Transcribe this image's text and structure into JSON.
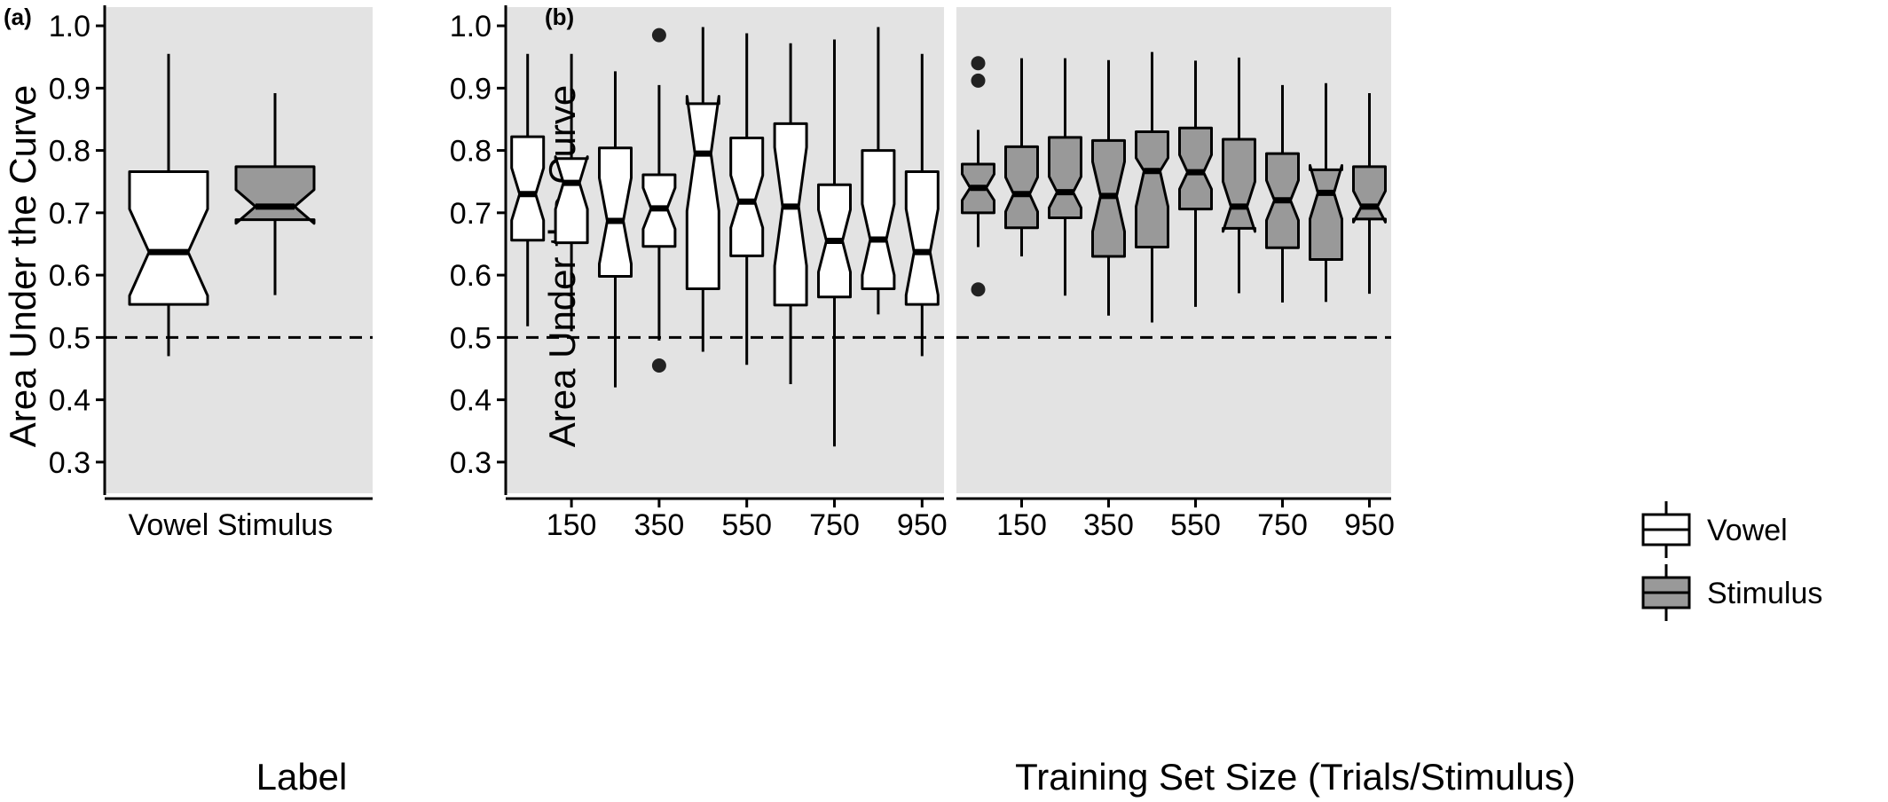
{
  "colors": {
    "panel_bg": "#e3e3e3",
    "vowel_fill": "#ffffff",
    "stimulus_fill": "#999999",
    "stroke": "#000000",
    "reference_line": "#000000"
  },
  "chart_data": [
    {
      "panel": "(a)",
      "type": "boxplot",
      "notched": true,
      "xlabel": "Label",
      "ylabel": "Area Under the Curve",
      "ylim": [
        0.25,
        1.03
      ],
      "yticks": [
        "0.3",
        "0.4",
        "0.5",
        "0.6",
        "0.7",
        "0.8",
        "0.9",
        "1.0"
      ],
      "reference_line": 0.5,
      "grid": false,
      "categories": [
        "Vowel",
        "Stimulus"
      ],
      "boxes": [
        {
          "category": "Vowel",
          "group": "Vowel",
          "whisker_low": 0.47,
          "q1": 0.553,
          "median": 0.637,
          "q3": 0.766,
          "whisker_high": 0.955,
          "notch_low": 0.567,
          "notch_high": 0.706,
          "outliers": []
        },
        {
          "category": "Stimulus",
          "group": "Stimulus",
          "whisker_low": 0.568,
          "q1": 0.689,
          "median": 0.71,
          "q3": 0.774,
          "whisker_high": 0.892,
          "notch_low": 0.683,
          "notch_high": 0.737,
          "outliers": []
        }
      ]
    },
    {
      "panel": "(b)",
      "type": "boxplot",
      "notched": true,
      "facet": "Vowel",
      "ylabel": "Area Under the Curve",
      "xlabel": "Training Set Size (Trials/Stimulus)",
      "ylim": [
        0.25,
        1.03
      ],
      "yticks": [
        "0.3",
        "0.4",
        "0.5",
        "0.6",
        "0.7",
        "0.8",
        "0.9",
        "1.0"
      ],
      "xticks": [
        "150",
        "350",
        "550",
        "750",
        "950"
      ],
      "reference_line": 0.5,
      "grid": false,
      "x": [
        50,
        150,
        250,
        350,
        450,
        550,
        650,
        750,
        850,
        950
      ],
      "boxes": [
        {
          "x": 50,
          "group": "Vowel",
          "whisker_low": 0.518,
          "q1": 0.656,
          "median": 0.73,
          "q3": 0.822,
          "whisker_high": 0.955,
          "notch_low": 0.688,
          "notch_high": 0.772,
          "outliers": []
        },
        {
          "x": 150,
          "group": "Vowel",
          "whisker_low": 0.51,
          "q1": 0.652,
          "median": 0.748,
          "q3": 0.787,
          "whisker_high": 0.955,
          "notch_low": 0.706,
          "notch_high": 0.79,
          "outliers": []
        },
        {
          "x": 250,
          "group": "Vowel",
          "whisker_low": 0.42,
          "q1": 0.598,
          "median": 0.687,
          "q3": 0.804,
          "whisker_high": 0.927,
          "notch_low": 0.618,
          "notch_high": 0.756,
          "outliers": []
        },
        {
          "x": 350,
          "group": "Vowel",
          "whisker_low": 0.495,
          "q1": 0.646,
          "median": 0.707,
          "q3": 0.761,
          "whisker_high": 0.905,
          "notch_low": 0.674,
          "notch_high": 0.74,
          "outliers": [
            0.985,
            0.455
          ]
        },
        {
          "x": 450,
          "group": "Vowel",
          "whisker_low": 0.477,
          "q1": 0.578,
          "median": 0.795,
          "q3": 0.875,
          "whisker_high": 0.998,
          "notch_low": 0.703,
          "notch_high": 0.887,
          "outliers": []
        },
        {
          "x": 550,
          "group": "Vowel",
          "whisker_low": 0.456,
          "q1": 0.631,
          "median": 0.718,
          "q3": 0.82,
          "whisker_high": 0.988,
          "notch_low": 0.676,
          "notch_high": 0.76,
          "outliers": []
        },
        {
          "x": 650,
          "group": "Vowel",
          "whisker_low": 0.425,
          "q1": 0.552,
          "median": 0.71,
          "q3": 0.843,
          "whisker_high": 0.972,
          "notch_low": 0.615,
          "notch_high": 0.805,
          "outliers": []
        },
        {
          "x": 750,
          "group": "Vowel",
          "whisker_low": 0.325,
          "q1": 0.565,
          "median": 0.655,
          "q3": 0.745,
          "whisker_high": 0.978,
          "notch_low": 0.605,
          "notch_high": 0.705,
          "outliers": []
        },
        {
          "x": 850,
          "group": "Vowel",
          "whisker_low": 0.537,
          "q1": 0.578,
          "median": 0.657,
          "q3": 0.8,
          "whisker_high": 0.998,
          "notch_low": 0.6,
          "notch_high": 0.714,
          "outliers": []
        },
        {
          "x": 950,
          "group": "Vowel",
          "whisker_low": 0.47,
          "q1": 0.553,
          "median": 0.637,
          "q3": 0.766,
          "whisker_high": 0.955,
          "notch_low": 0.568,
          "notch_high": 0.706,
          "outliers": []
        }
      ]
    },
    {
      "panel": "(b)",
      "type": "boxplot",
      "notched": true,
      "facet": "Stimulus",
      "xlabel": "Training Set Size (Trials/Stimulus)",
      "ylim": [
        0.25,
        1.03
      ],
      "xticks": [
        "150",
        "350",
        "550",
        "750",
        "950"
      ],
      "reference_line": 0.5,
      "grid": false,
      "legend_position": "bottom-right",
      "legend": [
        "Vowel",
        "Stimulus"
      ],
      "x": [
        50,
        150,
        250,
        350,
        450,
        550,
        650,
        750,
        850,
        950
      ],
      "boxes": [
        {
          "x": 50,
          "group": "Stimulus",
          "whisker_low": 0.645,
          "q1": 0.7,
          "median": 0.74,
          "q3": 0.778,
          "whisker_high": 0.833,
          "notch_low": 0.72,
          "notch_high": 0.762,
          "outliers": [
            0.94,
            0.912,
            0.577
          ]
        },
        {
          "x": 150,
          "group": "Stimulus",
          "whisker_low": 0.63,
          "q1": 0.676,
          "median": 0.73,
          "q3": 0.806,
          "whisker_high": 0.948,
          "notch_low": 0.702,
          "notch_high": 0.757,
          "outliers": []
        },
        {
          "x": 250,
          "group": "Stimulus",
          "whisker_low": 0.567,
          "q1": 0.692,
          "median": 0.733,
          "q3": 0.821,
          "whisker_high": 0.948,
          "notch_low": 0.708,
          "notch_high": 0.758,
          "outliers": []
        },
        {
          "x": 350,
          "group": "Stimulus",
          "whisker_low": 0.535,
          "q1": 0.63,
          "median": 0.727,
          "q3": 0.816,
          "whisker_high": 0.945,
          "notch_low": 0.67,
          "notch_high": 0.782,
          "outliers": []
        },
        {
          "x": 450,
          "group": "Stimulus",
          "whisker_low": 0.524,
          "q1": 0.645,
          "median": 0.767,
          "q3": 0.83,
          "whisker_high": 0.958,
          "notch_low": 0.71,
          "notch_high": 0.788,
          "outliers": []
        },
        {
          "x": 550,
          "group": "Stimulus",
          "whisker_low": 0.549,
          "q1": 0.706,
          "median": 0.765,
          "q3": 0.836,
          "whisker_high": 0.944,
          "notch_low": 0.738,
          "notch_high": 0.793,
          "outliers": []
        },
        {
          "x": 650,
          "group": "Stimulus",
          "whisker_low": 0.571,
          "q1": 0.675,
          "median": 0.71,
          "q3": 0.818,
          "whisker_high": 0.949,
          "notch_low": 0.67,
          "notch_high": 0.75,
          "outliers": []
        },
        {
          "x": 750,
          "group": "Stimulus",
          "whisker_low": 0.556,
          "q1": 0.644,
          "median": 0.72,
          "q3": 0.795,
          "whisker_high": 0.905,
          "notch_low": 0.688,
          "notch_high": 0.752,
          "outliers": []
        },
        {
          "x": 850,
          "group": "Stimulus",
          "whisker_low": 0.557,
          "q1": 0.625,
          "median": 0.732,
          "q3": 0.769,
          "whisker_high": 0.908,
          "notch_low": 0.69,
          "notch_high": 0.776,
          "outliers": []
        },
        {
          "x": 950,
          "group": "Stimulus",
          "whisker_low": 0.57,
          "q1": 0.69,
          "median": 0.71,
          "q3": 0.774,
          "whisker_high": 0.892,
          "notch_low": 0.685,
          "notch_high": 0.735,
          "outliers": []
        }
      ]
    }
  ]
}
